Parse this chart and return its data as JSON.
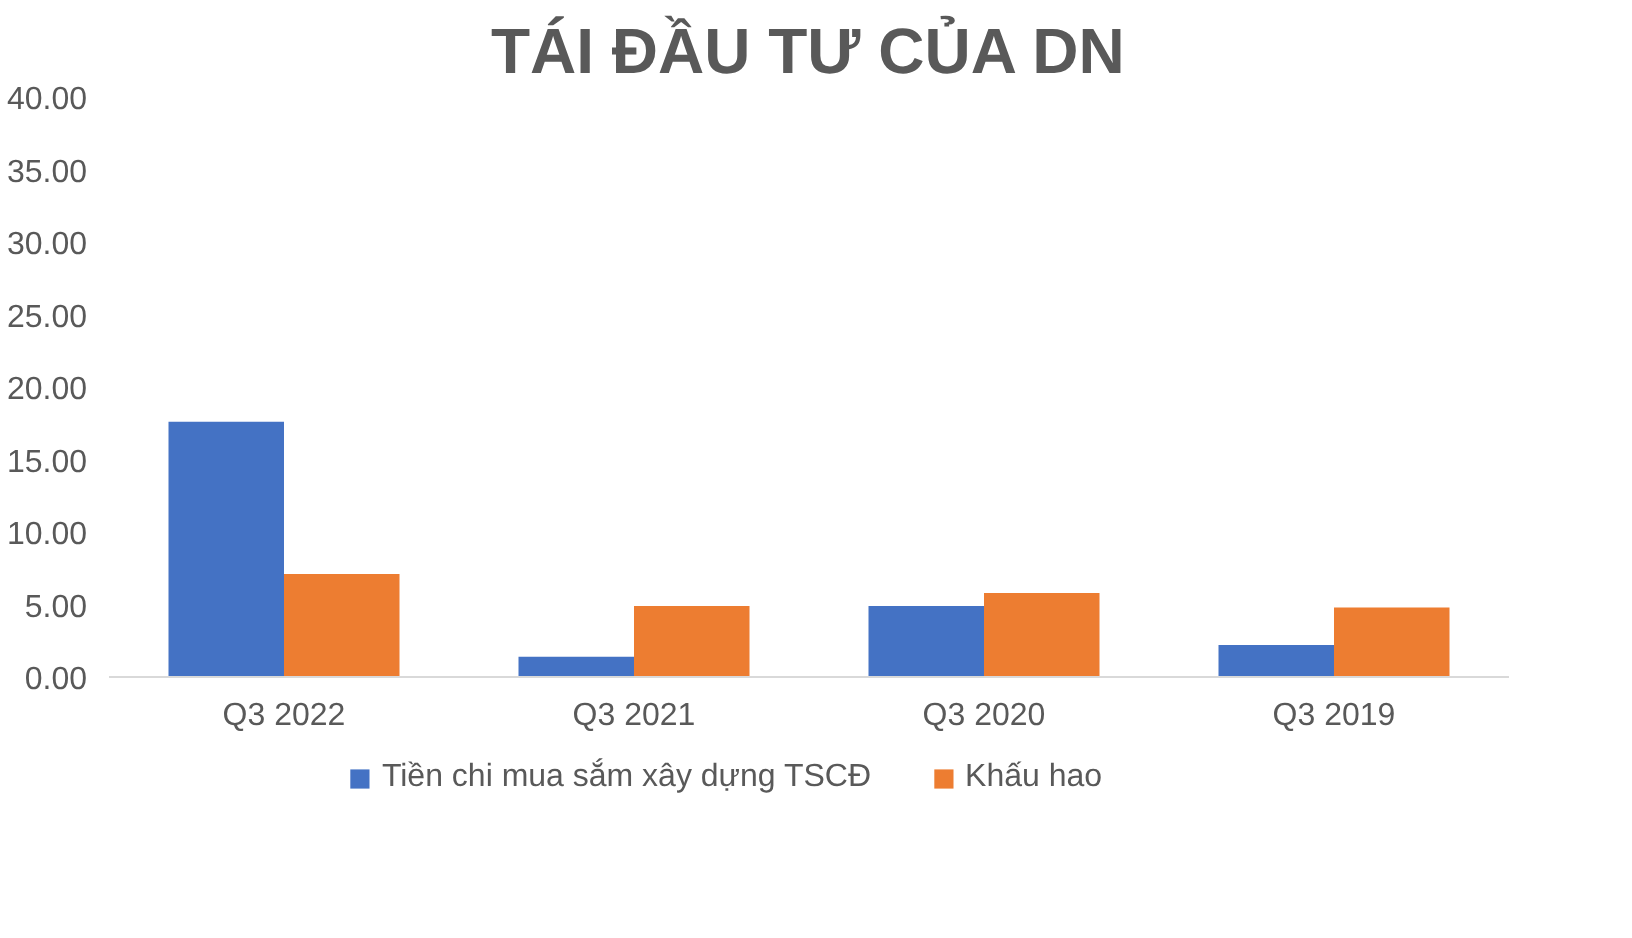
{
  "chart_data": {
    "type": "bar",
    "title": "TÁI ĐẦU TƯ CỦA DN",
    "categories": [
      "Q3 2022",
      "Q3 2021",
      "Q3 2020",
      "Q3 2019"
    ],
    "series": [
      {
        "name": "Tiền chi mua sắm xây dựng TSCĐ",
        "color": "#4472c4",
        "values": [
          17.6,
          1.4,
          4.9,
          2.2
        ]
      },
      {
        "name": "Khấu hao",
        "color": "#ed7d31",
        "values": [
          7.1,
          4.9,
          5.8,
          4.8
        ]
      }
    ],
    "ylim": [
      0,
      40
    ],
    "yticks": [
      {
        "value": 0,
        "label": "0.00"
      },
      {
        "value": 5,
        "label": "5.00"
      },
      {
        "value": 10,
        "label": "10.00"
      },
      {
        "value": 15,
        "label": "15.00"
      },
      {
        "value": 20,
        "label": "20.00"
      },
      {
        "value": 25,
        "label": "25.00"
      },
      {
        "value": 30,
        "label": "30.00"
      },
      {
        "value": 35,
        "label": "35.00"
      },
      {
        "value": 40,
        "label": "40.00"
      }
    ],
    "grid": false,
    "legend": "bottom"
  }
}
